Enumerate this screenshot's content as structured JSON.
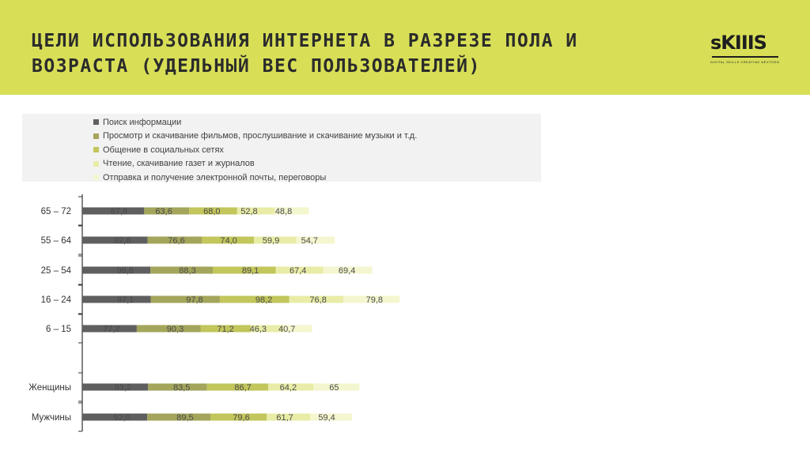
{
  "header": {
    "title_line1": "ЦЕЛИ ИСПОЛЬЗОВАНИЯ ИНТЕРНЕТА В РАЗРЕЗЕ ПОЛА И",
    "title_line2": "ВОЗРАСТА (УДЕЛЬНЫЙ ВЕС ПОЛЬЗОВАТЕЛЕЙ)"
  },
  "logo": {
    "word": "sKIIIS",
    "tagline": "DIGITAL SKILLS CREATING NEXTGEN"
  },
  "colors": {
    "header_bg": "#d8df57",
    "series": [
      "#5f5f5f",
      "#a3a55b",
      "#c2c65b",
      "#e8eca6",
      "#f4f6cf"
    ]
  },
  "chart_data": {
    "type": "bar",
    "orientation": "horizontal",
    "stacked": true,
    "categories": [
      "65 – 72",
      "55 – 64",
      "25 – 54",
      "16 – 24",
      "6 – 15",
      "",
      "Женщины",
      "Мужчины"
    ],
    "series": [
      {
        "name": "Поиск информации",
        "values": [
          87.8,
          92.6,
          96.6,
          97.1,
          77.2,
          null,
          93.2,
          92.0
        ],
        "labels": [
          "87,8",
          "92,6",
          "96,6",
          "97,1",
          "77,2",
          "",
          "93,2",
          "92,0"
        ]
      },
      {
        "name": "Просмотр и скачивание  фильмов, прослушивание и скачивание музыки и т.д.",
        "values": [
          63.6,
          76.6,
          88.3,
          97.8,
          90.3,
          null,
          83.5,
          89.5
        ],
        "labels": [
          "63,6",
          "76,6",
          "88,3",
          "97,8",
          "90,3",
          "",
          "83,5",
          "89,5"
        ]
      },
      {
        "name": "Общение в социальных сетях",
        "values": [
          68.0,
          74.0,
          89.1,
          98.2,
          71.2,
          null,
          86.7,
          79.6
        ],
        "labels": [
          "68,0",
          "74,0",
          "89,1",
          "98,2",
          "71,2",
          "",
          "86,7",
          "79,6"
        ]
      },
      {
        "name": "Чтение, скачивание газет и журналов",
        "values": [
          52.8,
          59.9,
          67.4,
          76.8,
          46.3,
          null,
          64.2,
          61.7
        ],
        "labels": [
          "52,8",
          "59,9",
          "67,4",
          "76,8",
          "46,3",
          "",
          "64,2",
          "61,7"
        ]
      },
      {
        "name": "Отправка и получение электронной почты, переговоры",
        "values": [
          48.8,
          54.7,
          69.4,
          79.8,
          40.7,
          null,
          65,
          59.4
        ],
        "labels": [
          "48,8",
          "54,7",
          "69,4",
          "79,8",
          "40,7",
          "",
          "65",
          "59,4"
        ]
      }
    ],
    "legend_position": "top-left",
    "grid": false
  }
}
